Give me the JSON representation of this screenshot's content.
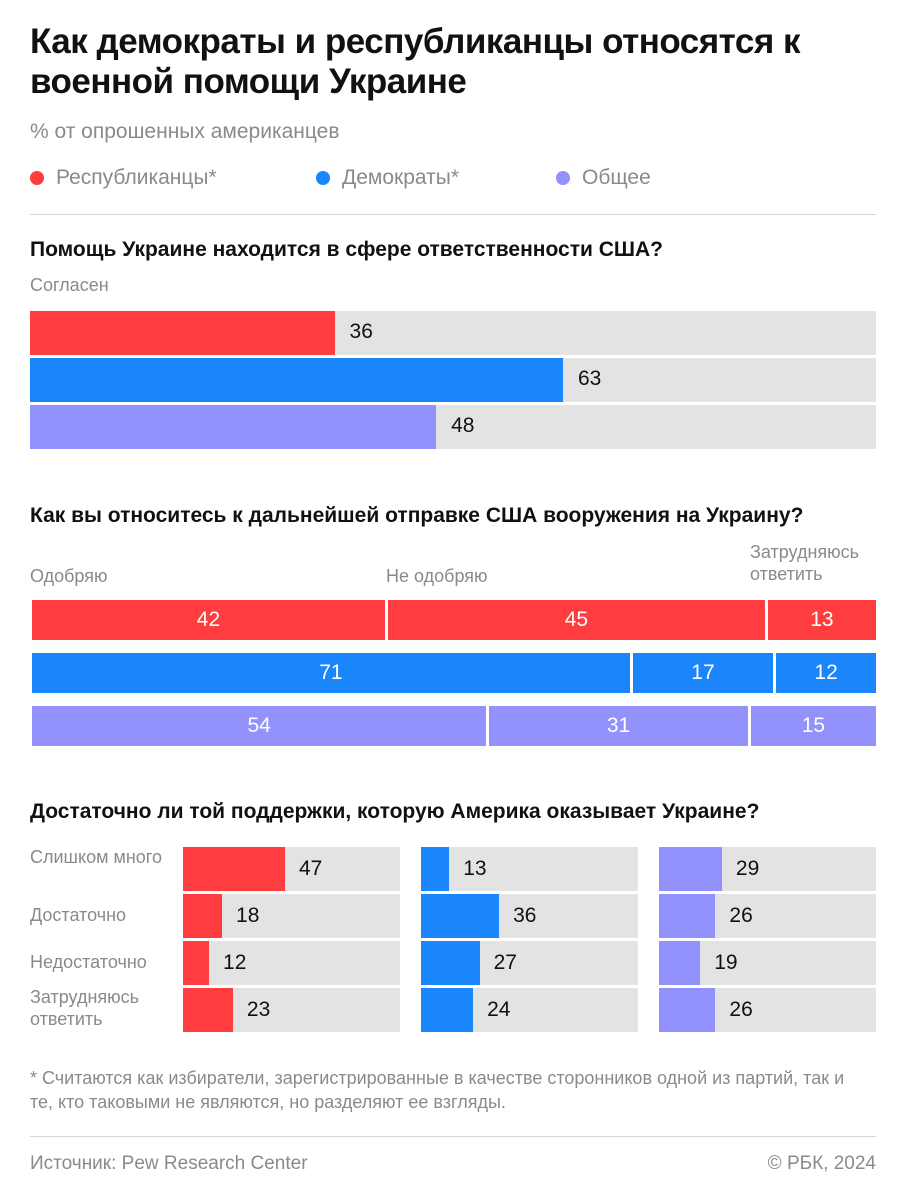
{
  "title": "Как демократы и республиканцы относятся к военной помощи Украине",
  "subtitle": "% от опрошенных американцев",
  "colors": {
    "republicans": "#ff3d3f",
    "democrats": "#1b85fb",
    "total": "#9391fc",
    "background_bar": "#e3e3e3"
  },
  "legend": [
    {
      "label": "Республиканцы*",
      "color": "#ff3d3f"
    },
    {
      "label": "Демократы*",
      "color": "#1b85fb"
    },
    {
      "label": "Общее",
      "color": "#9391fc"
    }
  ],
  "chart_data": [
    {
      "type": "bar",
      "title": "Помощь Украине находится в сфере ответственности США?",
      "subtitle": "Согласен",
      "categories": [
        "Республиканцы*",
        "Демократы*",
        "Общее"
      ],
      "values": [
        36,
        63,
        48
      ],
      "ylim": [
        0,
        100
      ]
    },
    {
      "type": "bar",
      "stacked": true,
      "title": "Как вы относитесь к дальнейшей отправке США вооружения на Украину?",
      "categories": [
        "Республиканцы*",
        "Демократы*",
        "Общее"
      ],
      "series": [
        {
          "name": "Одобряю",
          "values": [
            42,
            71,
            54
          ]
        },
        {
          "name": "Не одобряю",
          "values": [
            45,
            17,
            31
          ]
        },
        {
          "name": "Затрудняюсь ответить",
          "values": [
            13,
            12,
            15
          ]
        }
      ]
    },
    {
      "type": "bar",
      "title": "Достаточно ли той поддержки, которую Америка оказывает Украине?",
      "categories": [
        "Слишком много",
        "Достаточно",
        "Недостаточно",
        "Затрудняюсь ответить"
      ],
      "series": [
        {
          "name": "Республиканцы*",
          "values": [
            47,
            18,
            12,
            23
          ]
        },
        {
          "name": "Демократы*",
          "values": [
            13,
            36,
            27,
            24
          ]
        },
        {
          "name": "Общее",
          "values": [
            29,
            26,
            19,
            26
          ]
        }
      ],
      "ylim": [
        0,
        100
      ]
    }
  ],
  "footnote": "* Считаются как избиратели, зарегистрированные в качестве сторонников одной из партий, так и те, кто таковыми не являются, но разделяют ее взгляды.",
  "source": "Источник: Pew Research Center",
  "copyright": "© РБК, 2024"
}
